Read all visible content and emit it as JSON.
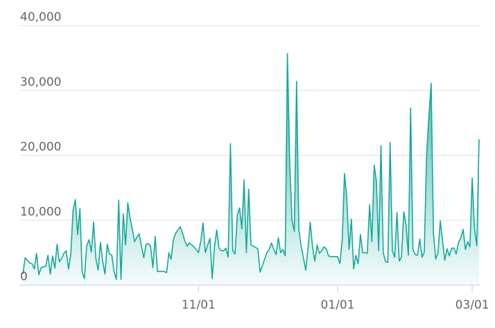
{
  "chart_data": {
    "type": "area",
    "title": "",
    "xlabel": "",
    "ylabel": "",
    "ylim": [
      0,
      40000
    ],
    "grid": true,
    "legend": "none",
    "y_ticks": [
      {
        "value": 0,
        "label": "0"
      },
      {
        "value": 10000,
        "label": "10,000"
      },
      {
        "value": 20000,
        "label": "20,000"
      },
      {
        "value": 30000,
        "label": "30,000"
      },
      {
        "value": 40000,
        "label": "40,000"
      }
    ],
    "x_ticks": [
      {
        "x": 77,
        "label": "11/01"
      },
      {
        "x": 138,
        "label": "01/01"
      },
      {
        "x": 197,
        "label": "03/01"
      }
    ],
    "colors": {
      "line": "#14a89a",
      "fill_top": "#14a89a",
      "grid": "#e6e6e6",
      "axis": "#ccd6eb"
    },
    "series": [
      {
        "values": [
          1700,
          4200,
          3800,
          3400,
          3300,
          2500,
          4900,
          1600,
          2700,
          2800,
          2900,
          4600,
          1700,
          4500,
          2600,
          6300,
          3600,
          4100,
          4900,
          5300,
          2500,
          4700,
          11600,
          13200,
          7800,
          11800,
          2000,
          1000,
          6100,
          7000,
          5100,
          9700,
          4100,
          2300,
          6600,
          3600,
          1700,
          6300,
          4800,
          4600,
          2000,
          900,
          13100,
          900,
          11000,
          6200,
          12700,
          10400,
          8600,
          6700,
          7400,
          7900,
          6000,
          4200,
          6300,
          6400,
          6000,
          2700,
          7500,
          2100,
          2100,
          2100,
          2100,
          1900,
          5000,
          4000,
          7000,
          8000,
          8500,
          9000,
          8000,
          6800,
          6000,
          6500,
          6200,
          5900,
          5500,
          5000,
          6800,
          9600,
          5000,
          6200,
          7200,
          1000,
          5900,
          8500,
          5700,
          5300,
          5300,
          5700,
          4300,
          21800,
          5300,
          4800,
          10800,
          11900,
          8700,
          16200,
          5000,
          14800,
          6200,
          6000,
          5800,
          5600,
          2000,
          3000,
          4000,
          5000,
          5500,
          6500,
          5500,
          4700,
          7300,
          5000,
          5500,
          4500,
          35700,
          19000,
          10000,
          8300,
          31400,
          8600,
          6000,
          4200,
          2300,
          5700,
          9700,
          5900,
          3700,
          6200,
          4900,
          5300,
          5900,
          5600,
          4500,
          4400,
          4400,
          4400,
          4400,
          3300,
          7000,
          17200,
          13500,
          5500,
          10200,
          2500,
          4600,
          3300,
          7800,
          5000,
          5000,
          4900,
          12400,
          6700,
          18500,
          16000,
          5300,
          21500,
          5000,
          3600,
          3500,
          22000,
          5300,
          4300,
          11200,
          3700,
          4300,
          11300,
          9300,
          4600,
          27300,
          5500,
          4700,
          4600,
          7100,
          4300,
          5100,
          20000,
          26000,
          31100,
          8000,
          4000,
          5000,
          9900,
          6800,
          3800,
          5600,
          4500,
          5700,
          5700,
          4800,
          6600,
          7300,
          8600,
          5500,
          6700,
          5900,
          16500,
          8700,
          6100,
          22500
        ]
      }
    ]
  }
}
